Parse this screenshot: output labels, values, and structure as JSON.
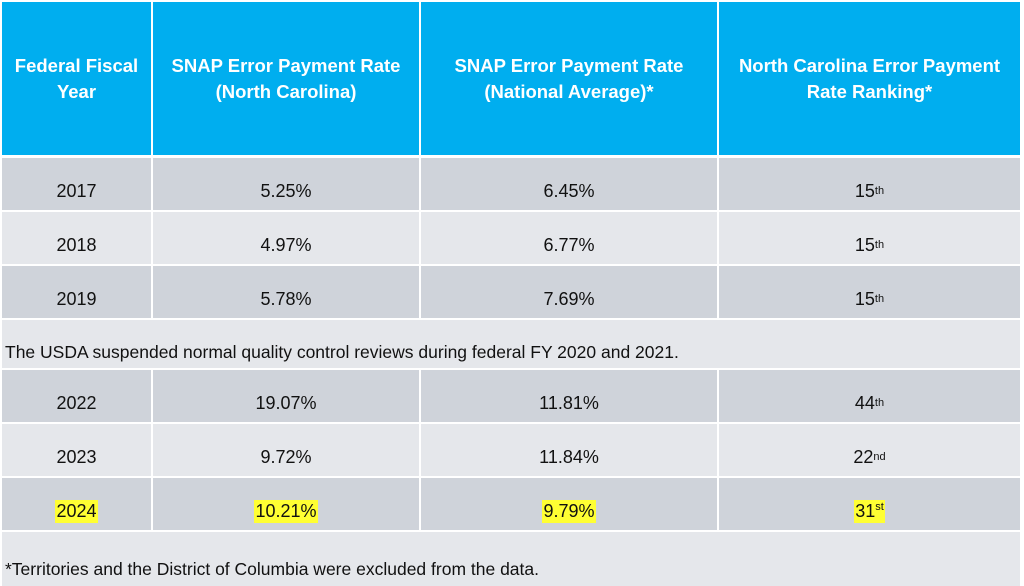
{
  "headers": [
    [
      "Federal Fiscal",
      "Year"
    ],
    [
      "SNAP Error Payment Rate",
      "(North Carolina)"
    ],
    [
      "SNAP Error Payment Rate",
      "(National Average)*"
    ],
    [
      "North Carolina Error Payment",
      "Rate Ranking*"
    ]
  ],
  "rows_a": [
    {
      "year": "2017",
      "nc": "5.25%",
      "nat": "6.45%",
      "rank": "15",
      "suffix": "th"
    },
    {
      "year": "2018",
      "nc": "4.97%",
      "nat": "6.77%",
      "rank": "15",
      "suffix": "th"
    },
    {
      "year": "2019",
      "nc": "5.78%",
      "nat": "7.69%",
      "rank": "15",
      "suffix": "th"
    }
  ],
  "note": "The USDA suspended normal quality control reviews during federal FY 2020 and 2021.",
  "rows_b": [
    {
      "year": "2022",
      "nc": "19.07%",
      "nat": "11.81%",
      "rank": "44",
      "suffix": "th"
    },
    {
      "year": "2023",
      "nc": "9.72%",
      "nat": "11.84%",
      "rank": "22",
      "suffix": "nd"
    },
    {
      "year": "2024",
      "nc": "10.21%",
      "nat": "9.79%",
      "rank": "31",
      "suffix": "st"
    }
  ],
  "footnote": "*Territories and the District of Columbia were excluded from the data.",
  "colors": {
    "header": "#00aeef",
    "row_dark": "#cfd3da",
    "row_light": "#e5e7eb",
    "highlight": "#ffff33"
  }
}
